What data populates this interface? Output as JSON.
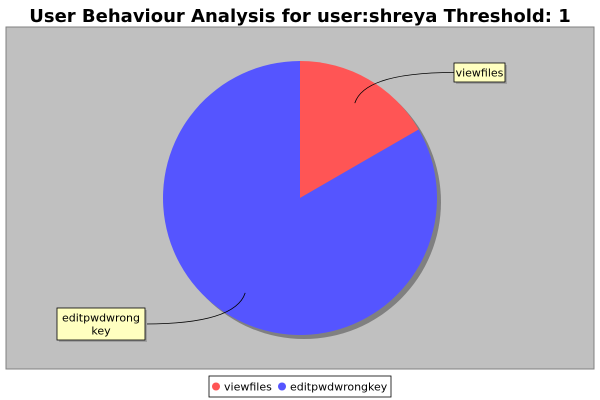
{
  "chart_data": {
    "type": "pie",
    "title": "User Behaviour Analysis for user:shreya Threshold: 1",
    "categories": [
      "viewfiles",
      "editpwdwrongkey"
    ],
    "values": [
      1,
      5
    ],
    "slice_labels": [
      [
        "viewfiles"
      ],
      [
        "editpwdwrong",
        "key"
      ]
    ],
    "colors": [
      "#ff5555",
      "#5555ff"
    ],
    "legend": {
      "position": "bottom",
      "entries": [
        "viewfiles",
        "editpwdwrongkey"
      ]
    },
    "plot_background": "#c0c0c0",
    "label_background": "#ffffc0"
  }
}
